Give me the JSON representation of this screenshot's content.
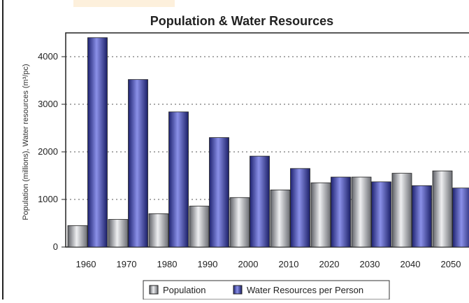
{
  "chart_data": {
    "type": "bar",
    "title": "Population & Water Resources",
    "xlabel": "",
    "ylabel": "Population (millions), Water resources (m³/pc)",
    "categories": [
      "1960",
      "1970",
      "1980",
      "1990",
      "2000",
      "2010",
      "2020",
      "2030",
      "2040",
      "2050"
    ],
    "series": [
      {
        "name": "Population",
        "values": [
          450,
          580,
          700,
          860,
          1040,
          1200,
          1350,
          1470,
          1550,
          1600
        ]
      },
      {
        "name": "Water Resources per Person",
        "values": [
          4400,
          3520,
          2840,
          2300,
          1910,
          1650,
          1470,
          1370,
          1290,
          1240
        ]
      }
    ],
    "ylim": [
      0,
      4500
    ],
    "yticks": [
      "0",
      "1000",
      "2000",
      "3000",
      "4000"
    ],
    "grid": true,
    "legend": "bottom",
    "colors": {
      "Population": "#a9abb0",
      "Water Resources per Person": "#4c52b6"
    }
  }
}
